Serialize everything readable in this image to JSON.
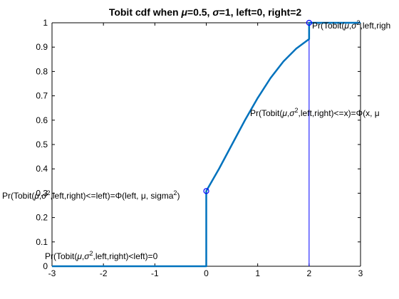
{
  "chart_data": {
    "type": "line",
    "title": {
      "prefix": "Tobit cdf when ",
      "mu_symbol": "μ",
      "mid": "=0.5, ",
      "sigma_symbol": "σ",
      "suffix": "=1, left=0, right=2"
    },
    "xlabel": "",
    "ylabel": "",
    "xlim": [
      -3,
      3
    ],
    "ylim": [
      0,
      1
    ],
    "x_ticks": [
      "-3",
      "-2",
      "-1",
      "0",
      "1",
      "2",
      "3"
    ],
    "y_ticks": [
      "0",
      "0.1",
      "0.2",
      "0.3",
      "0.4",
      "0.5",
      "0.6",
      "0.7",
      "0.8",
      "0.9",
      "1"
    ],
    "grid": false,
    "parameters": {
      "mu": 0.5,
      "sigma": 1,
      "left": 0,
      "right": 2
    },
    "series": [
      {
        "points": [
          [
            -3,
            0
          ],
          [
            0,
            0
          ],
          [
            0,
            0.309
          ],
          [
            0.25,
            0.401
          ],
          [
            0.5,
            0.5
          ],
          [
            0.75,
            0.599
          ],
          [
            1.0,
            0.691
          ],
          [
            1.25,
            0.773
          ],
          [
            1.5,
            0.841
          ],
          [
            1.75,
            0.894
          ],
          [
            2.0,
            0.933
          ],
          [
            2,
            1
          ],
          [
            3,
            1
          ]
        ],
        "color": "#0072BD"
      }
    ],
    "vertical_lines": [
      {
        "x": 0,
        "y0": 0,
        "y1": 0.309,
        "color": "#0000FF"
      },
      {
        "x": 2,
        "y0": 0,
        "y1": 1,
        "color": "#0000FF"
      }
    ],
    "markers": [
      {
        "x": 0,
        "y": 0.309,
        "shape": "circle",
        "color": "#0000FF"
      },
      {
        "x": 2,
        "y": 1,
        "shape": "circle",
        "color": "#0000FF"
      }
    ],
    "annotations": [
      {
        "id": "below-left",
        "before": "Pr(Tobit(",
        "sup": "2",
        "after": ",left,right)<left)=0"
      },
      {
        "id": "at-left",
        "before": "Pr(Tobit(",
        "sup": "2",
        "after": ",left,right)<=left)=Φ(left, μ, sigma",
        "sup2": "2",
        "after2": ")"
      },
      {
        "id": "interior",
        "before": "Pr(Tobit(",
        "sup": "2",
        "after": ",left,right)<=x)=Φ(x, μ"
      },
      {
        "id": "at-right",
        "before": "Pr(Tobit(",
        "sup": "2",
        "after": ",left,righ"
      }
    ],
    "annotation_symbols": {
      "mu": "μ",
      "sigma": "σ",
      "comma": ","
    }
  }
}
